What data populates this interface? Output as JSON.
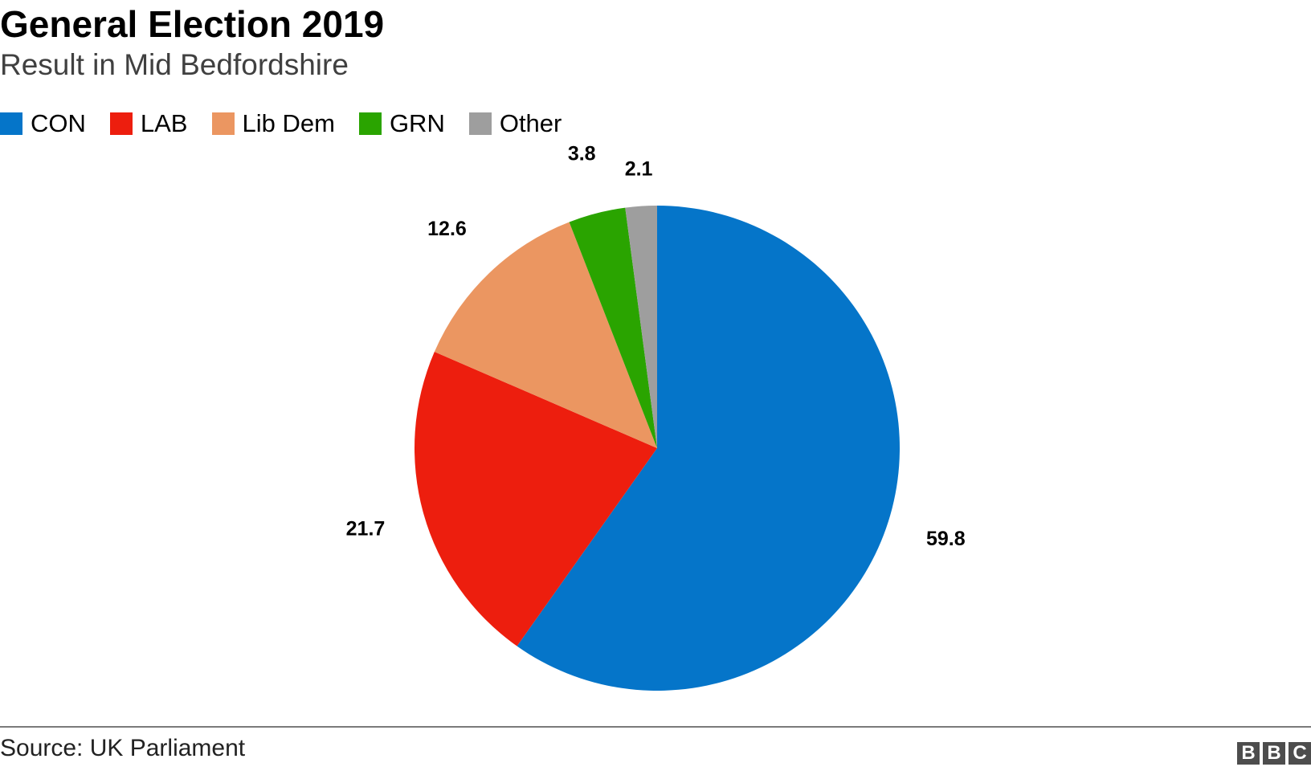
{
  "header": {
    "title": "General Election 2019",
    "subtitle": "Result in Mid Bedfordshire"
  },
  "legend": {
    "items": [
      {
        "label": "CON",
        "color": "#0575c9"
      },
      {
        "label": "LAB",
        "color": "#ed1e0e"
      },
      {
        "label": "Lib Dem",
        "color": "#eb9661"
      },
      {
        "label": "GRN",
        "color": "#2aa400"
      },
      {
        "label": "Other",
        "color": "#9e9e9e"
      }
    ]
  },
  "chart_data": {
    "type": "pie",
    "title": "General Election 2019",
    "subtitle": "Result in Mid Bedfordshire",
    "categories": [
      "CON",
      "LAB",
      "Lib Dem",
      "GRN",
      "Other"
    ],
    "values": [
      59.8,
      21.7,
      12.6,
      3.8,
      2.1
    ],
    "labels": [
      "59.8",
      "21.7",
      "12.6",
      "3.8",
      "2.1"
    ],
    "colors": [
      "#0575c9",
      "#ed1e0e",
      "#eb9661",
      "#2aa400",
      "#9e9e9e"
    ],
    "legend_position": "top-left",
    "start_angle": "12 o'clock",
    "direction": "clockwise"
  },
  "footer": {
    "source": "Source: UK Parliament",
    "logo_letters": [
      "B",
      "B",
      "C"
    ]
  }
}
